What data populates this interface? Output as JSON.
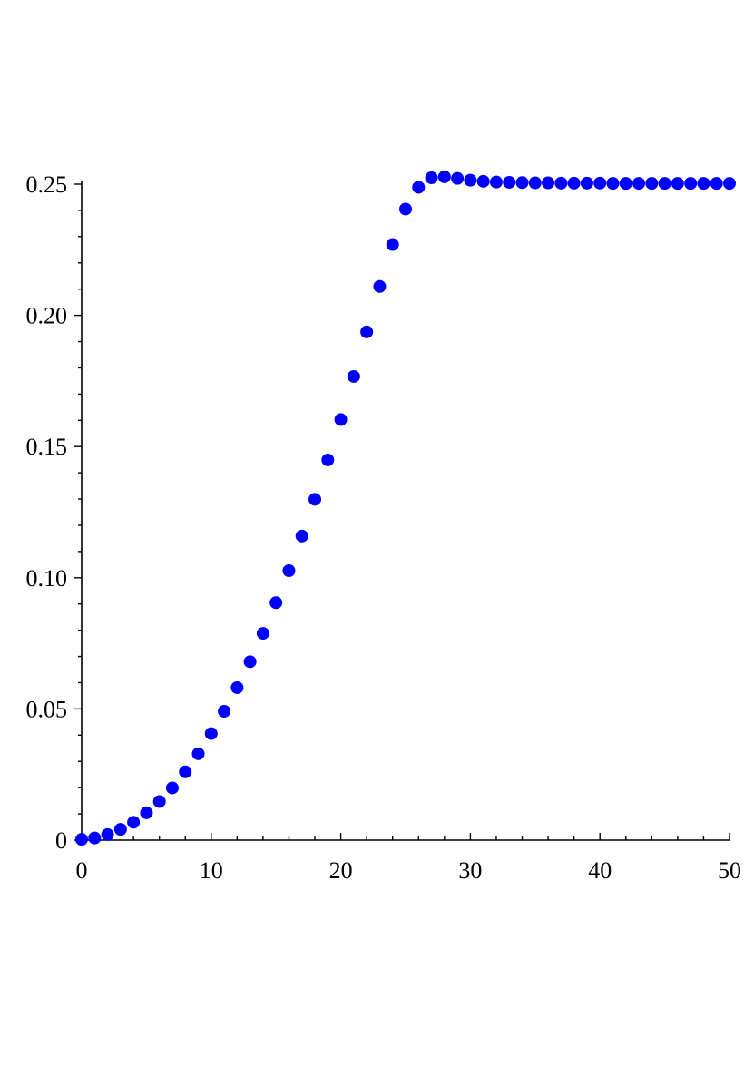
{
  "chart_data": {
    "type": "scatter",
    "title": "",
    "xlabel": "",
    "ylabel": "",
    "xlim": [
      0,
      50
    ],
    "ylim": [
      0,
      0.25
    ],
    "x_ticks": [
      0,
      10,
      20,
      30,
      40,
      50
    ],
    "x_tick_labels": [
      "0",
      "10",
      "20",
      "30",
      "40",
      "50"
    ],
    "y_ticks": [
      0,
      0.05,
      0.1,
      0.15,
      0.2,
      0.25
    ],
    "y_tick_labels": [
      "0",
      "0.05",
      "0.10",
      "0.15",
      "0.20",
      "0.25"
    ],
    "x_minor_step": 2,
    "y_minor_step": 0.01,
    "grid": false,
    "legend": "none",
    "marker_color": "#0000ff",
    "series": [
      {
        "x": [
          0,
          1,
          2,
          3,
          4,
          5,
          6,
          7,
          8,
          9,
          10,
          11,
          12,
          13,
          14,
          15,
          16,
          17,
          18,
          19,
          20,
          21,
          22,
          23,
          24,
          25,
          26,
          27,
          28,
          29,
          30,
          31,
          32,
          33,
          34,
          35,
          36,
          37,
          38,
          39,
          40,
          41,
          42,
          43,
          44,
          45,
          46,
          47,
          48,
          49,
          50
        ],
        "y": [
          0.0003,
          0.0008,
          0.0021,
          0.0041,
          0.0068,
          0.0104,
          0.0147,
          0.0199,
          0.026,
          0.0329,
          0.0406,
          0.0491,
          0.0581,
          0.068,
          0.0788,
          0.0905,
          0.1027,
          0.1159,
          0.1299,
          0.1449,
          0.1603,
          0.1767,
          0.1937,
          0.211,
          0.227,
          0.2405,
          0.2488,
          0.2524,
          0.2528,
          0.2522,
          0.2515,
          0.2511,
          0.2508,
          0.2507,
          0.2506,
          0.2505,
          0.2505,
          0.2504,
          0.2504,
          0.2504,
          0.2504,
          0.2503,
          0.2503,
          0.2503,
          0.2503,
          0.2503,
          0.2503,
          0.2503,
          0.2503,
          0.2503,
          0.2503
        ]
      }
    ]
  }
}
